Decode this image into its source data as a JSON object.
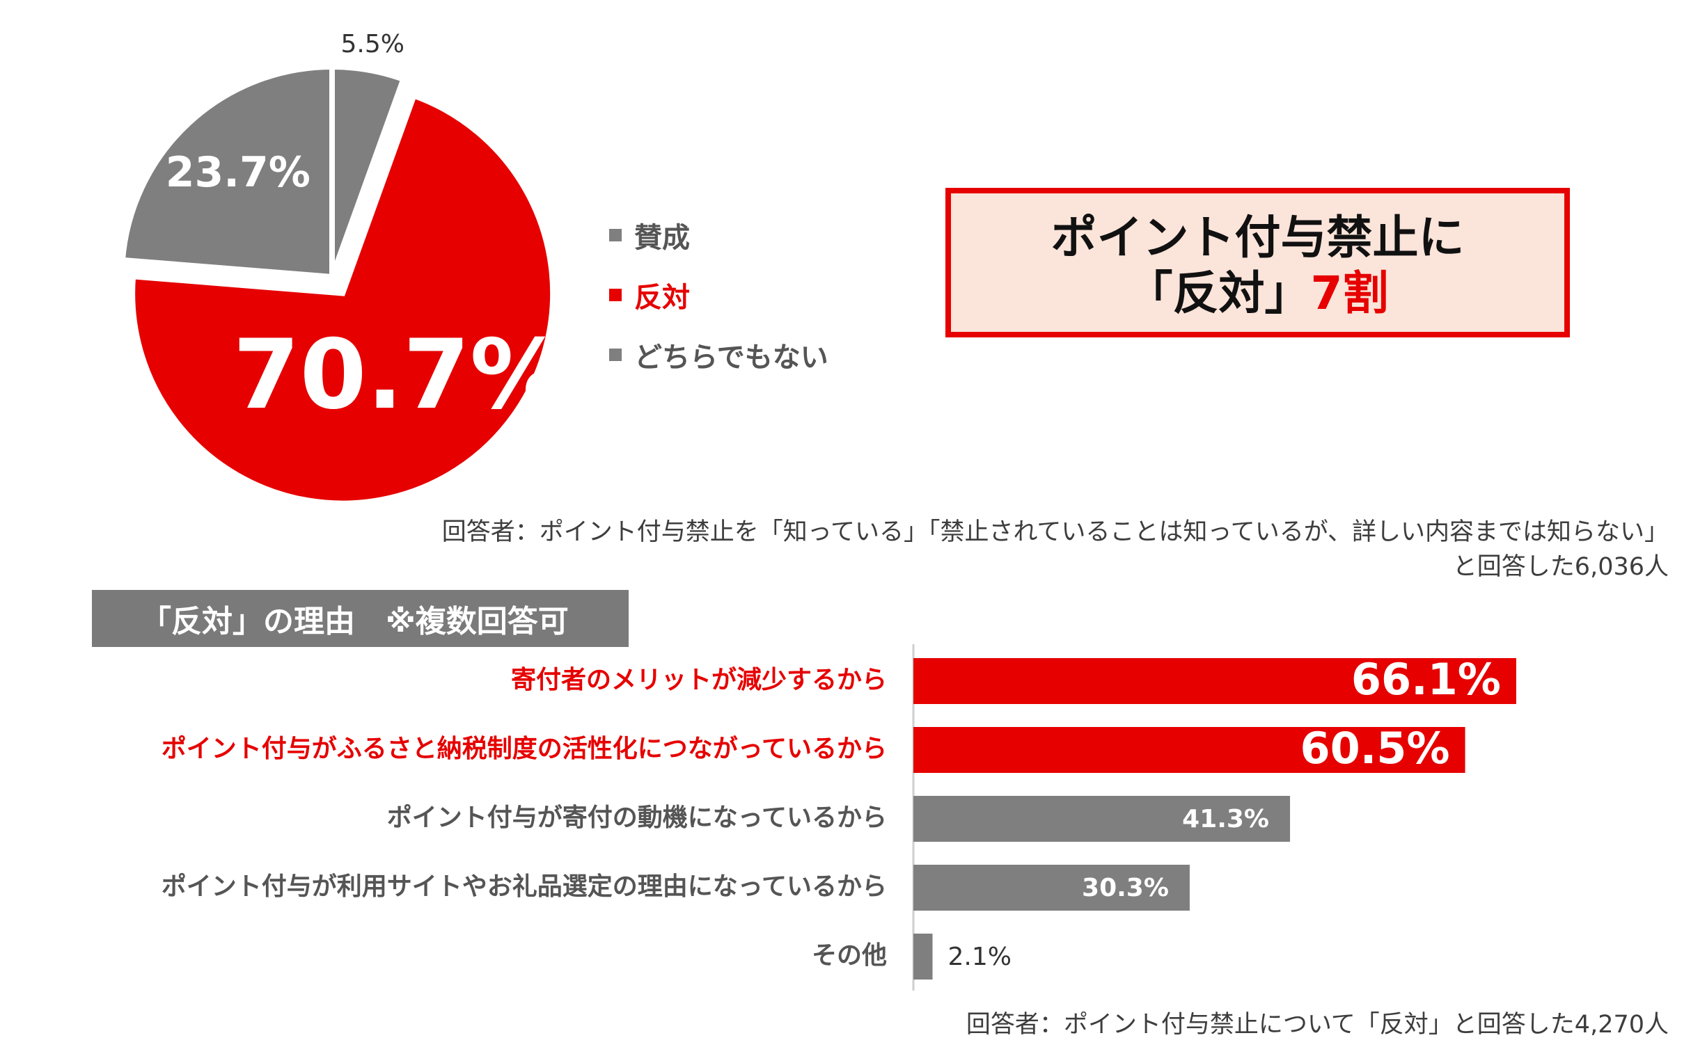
{
  "colors": {
    "red": "#e60000",
    "gray": "#7f7f7f",
    "text_gray": "#4a4a4a",
    "callout_bg": "#fbe4da"
  },
  "pie": {
    "slices": [
      {
        "name": "賛成",
        "value": 5.5,
        "label": "5.5%",
        "color": "#7f7f7f"
      },
      {
        "name": "反対",
        "value": 70.7,
        "label": "70.7%",
        "color": "#e60000"
      },
      {
        "name": "どちらでもない",
        "value": 23.7,
        "label": "23.7%",
        "color": "#7f7f7f"
      }
    ]
  },
  "legend": {
    "items": [
      {
        "label": "賛成",
        "color": "#7f7f7f"
      },
      {
        "label": "反対",
        "color": "#e60000"
      },
      {
        "label": "どちらでもない",
        "color": "#7f7f7f"
      }
    ]
  },
  "callout": {
    "line1": "ポイント付与禁止に",
    "line2_a": "「反対」",
    "line2_b": "7割"
  },
  "respondents1": {
    "line1": "回答者：ポイント付与禁止を「知っている」「禁止されていることは知っているが、詳しい内容までは知らない」",
    "line2": "と回答した6,036人"
  },
  "section_header": "「反対」の理由　※複数回答可",
  "chart_data": [
    {
      "type": "pie",
      "categories": [
        "賛成",
        "反対",
        "どちらでもない"
      ],
      "values": [
        5.5,
        70.7,
        23.7
      ]
    },
    {
      "type": "bar",
      "orientation": "horizontal",
      "categories": [
        "寄付者のメリットが減少するから",
        "ポイント付与がふるさと納税制度の活性化につながっているから",
        "ポイント付与が寄付の動機になっているから",
        "ポイント付与が利用サイトやお礼品選定の理由になっているから",
        "その他"
      ],
      "values": [
        66.1,
        60.5,
        41.3,
        30.3,
        2.1
      ],
      "labels": [
        "66.1%",
        "60.5%",
        "41.3%",
        "30.3%",
        "2.1%"
      ],
      "highlight": [
        true,
        true,
        false,
        false,
        false
      ],
      "xlim": [
        0,
        100
      ]
    }
  ],
  "respondents2": "回答者：ポイント付与禁止について「反対」と回答した4,270人"
}
